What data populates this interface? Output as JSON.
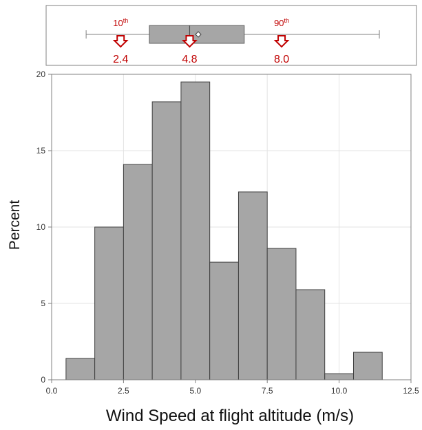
{
  "chart_data": {
    "type": "bar",
    "xlabel": "Wind Speed at flight altitude (m/s)",
    "ylabel": "Percent",
    "xlim": [
      0,
      12.5
    ],
    "ylim": [
      0,
      20
    ],
    "x_ticks": [
      0.0,
      2.5,
      5.0,
      7.5,
      10.0,
      12.5
    ],
    "x_tick_labels": [
      "0.0",
      "2.5",
      "5.0",
      "7.5",
      "10.0",
      "12.5"
    ],
    "y_ticks": [
      0,
      5,
      10,
      15,
      20
    ],
    "y_tick_labels": [
      "0",
      "5",
      "10",
      "15",
      "20"
    ],
    "grid": true,
    "bin_edges": [
      0.5,
      1.5,
      2.5,
      3.5,
      4.5,
      5.5,
      6.5,
      7.5,
      8.5,
      9.5,
      10.5,
      11.5
    ],
    "values": [
      1.4,
      10.0,
      14.1,
      18.2,
      19.5,
      7.7,
      12.3,
      8.6,
      5.9,
      0.4,
      1.8
    ],
    "bar_color": "#a6a6a6",
    "boxplot": {
      "whisker_low": 1.2,
      "q1": 3.4,
      "median": 4.8,
      "mean": 5.1,
      "q3": 6.7,
      "whisker_high": 11.4,
      "box_color": "#a6a6a6"
    },
    "annotations": [
      {
        "label": "10",
        "sup": "th",
        "value": "2.4",
        "x": 2.4
      },
      {
        "label": "",
        "sup": "",
        "value": "4.8",
        "x": 4.8
      },
      {
        "label": "90",
        "sup": "th",
        "value": "8.0",
        "x": 8.0
      }
    ],
    "annotation_color": "#c00000"
  }
}
